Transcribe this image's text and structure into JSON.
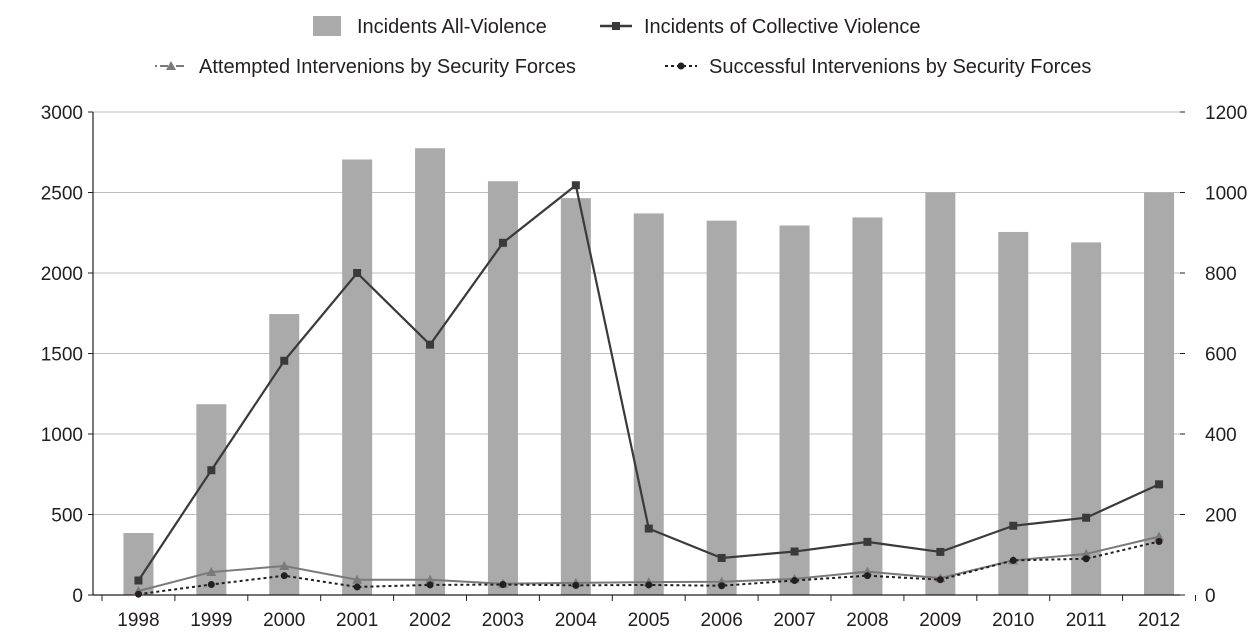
{
  "chart_data": {
    "type": "bar",
    "categories": [
      "1998",
      "1999",
      "2000",
      "2001",
      "2002",
      "2003",
      "2004",
      "2005",
      "2006",
      "2007",
      "2008",
      "2009",
      "2010",
      "2011",
      "2012"
    ],
    "series": [
      {
        "name": "Incidents All-Violence",
        "type": "bar",
        "axis": "left",
        "color": "#aaaaaa",
        "values": [
          385,
          1185,
          1745,
          2705,
          2775,
          2570,
          2465,
          2370,
          2325,
          2295,
          2345,
          2500,
          2255,
          2190,
          2500
        ]
      },
      {
        "name": "Incidents of Collective Violence",
        "type": "line",
        "axis": "right",
        "color": "#3a3a3a",
        "marker": "square",
        "values": [
          36,
          310,
          582,
          800,
          622,
          875,
          1018,
          165,
          92,
          108,
          132,
          107,
          172,
          192,
          275
        ]
      },
      {
        "name": "Attempted Intervenions by Security Forces",
        "type": "line",
        "axis": "right",
        "color": "#7a7a7a",
        "marker": "triangle",
        "values": [
          10,
          57,
          72,
          38,
          38,
          28,
          30,
          32,
          33,
          40,
          58,
          42,
          86,
          102,
          145
        ]
      },
      {
        "name": "Successful Intervenions by Security Forces",
        "type": "line",
        "axis": "right",
        "color": "#231f20",
        "marker": "circle",
        "dashed": true,
        "values": [
          2,
          26,
          48,
          20,
          25,
          26,
          24,
          25,
          23,
          36,
          48,
          38,
          86,
          90,
          133
        ]
      }
    ],
    "y_left": {
      "min": 0,
      "max": 3000,
      "ticks": [
        "0",
        "500",
        "1000",
        "1500",
        "2000",
        "2500",
        "3000"
      ]
    },
    "y_right": {
      "min": 0,
      "max": 1200,
      "ticks": [
        "0",
        "200",
        "400",
        "600",
        "800",
        "1000",
        "1200"
      ]
    },
    "grid": true,
    "legend_position": "top"
  }
}
